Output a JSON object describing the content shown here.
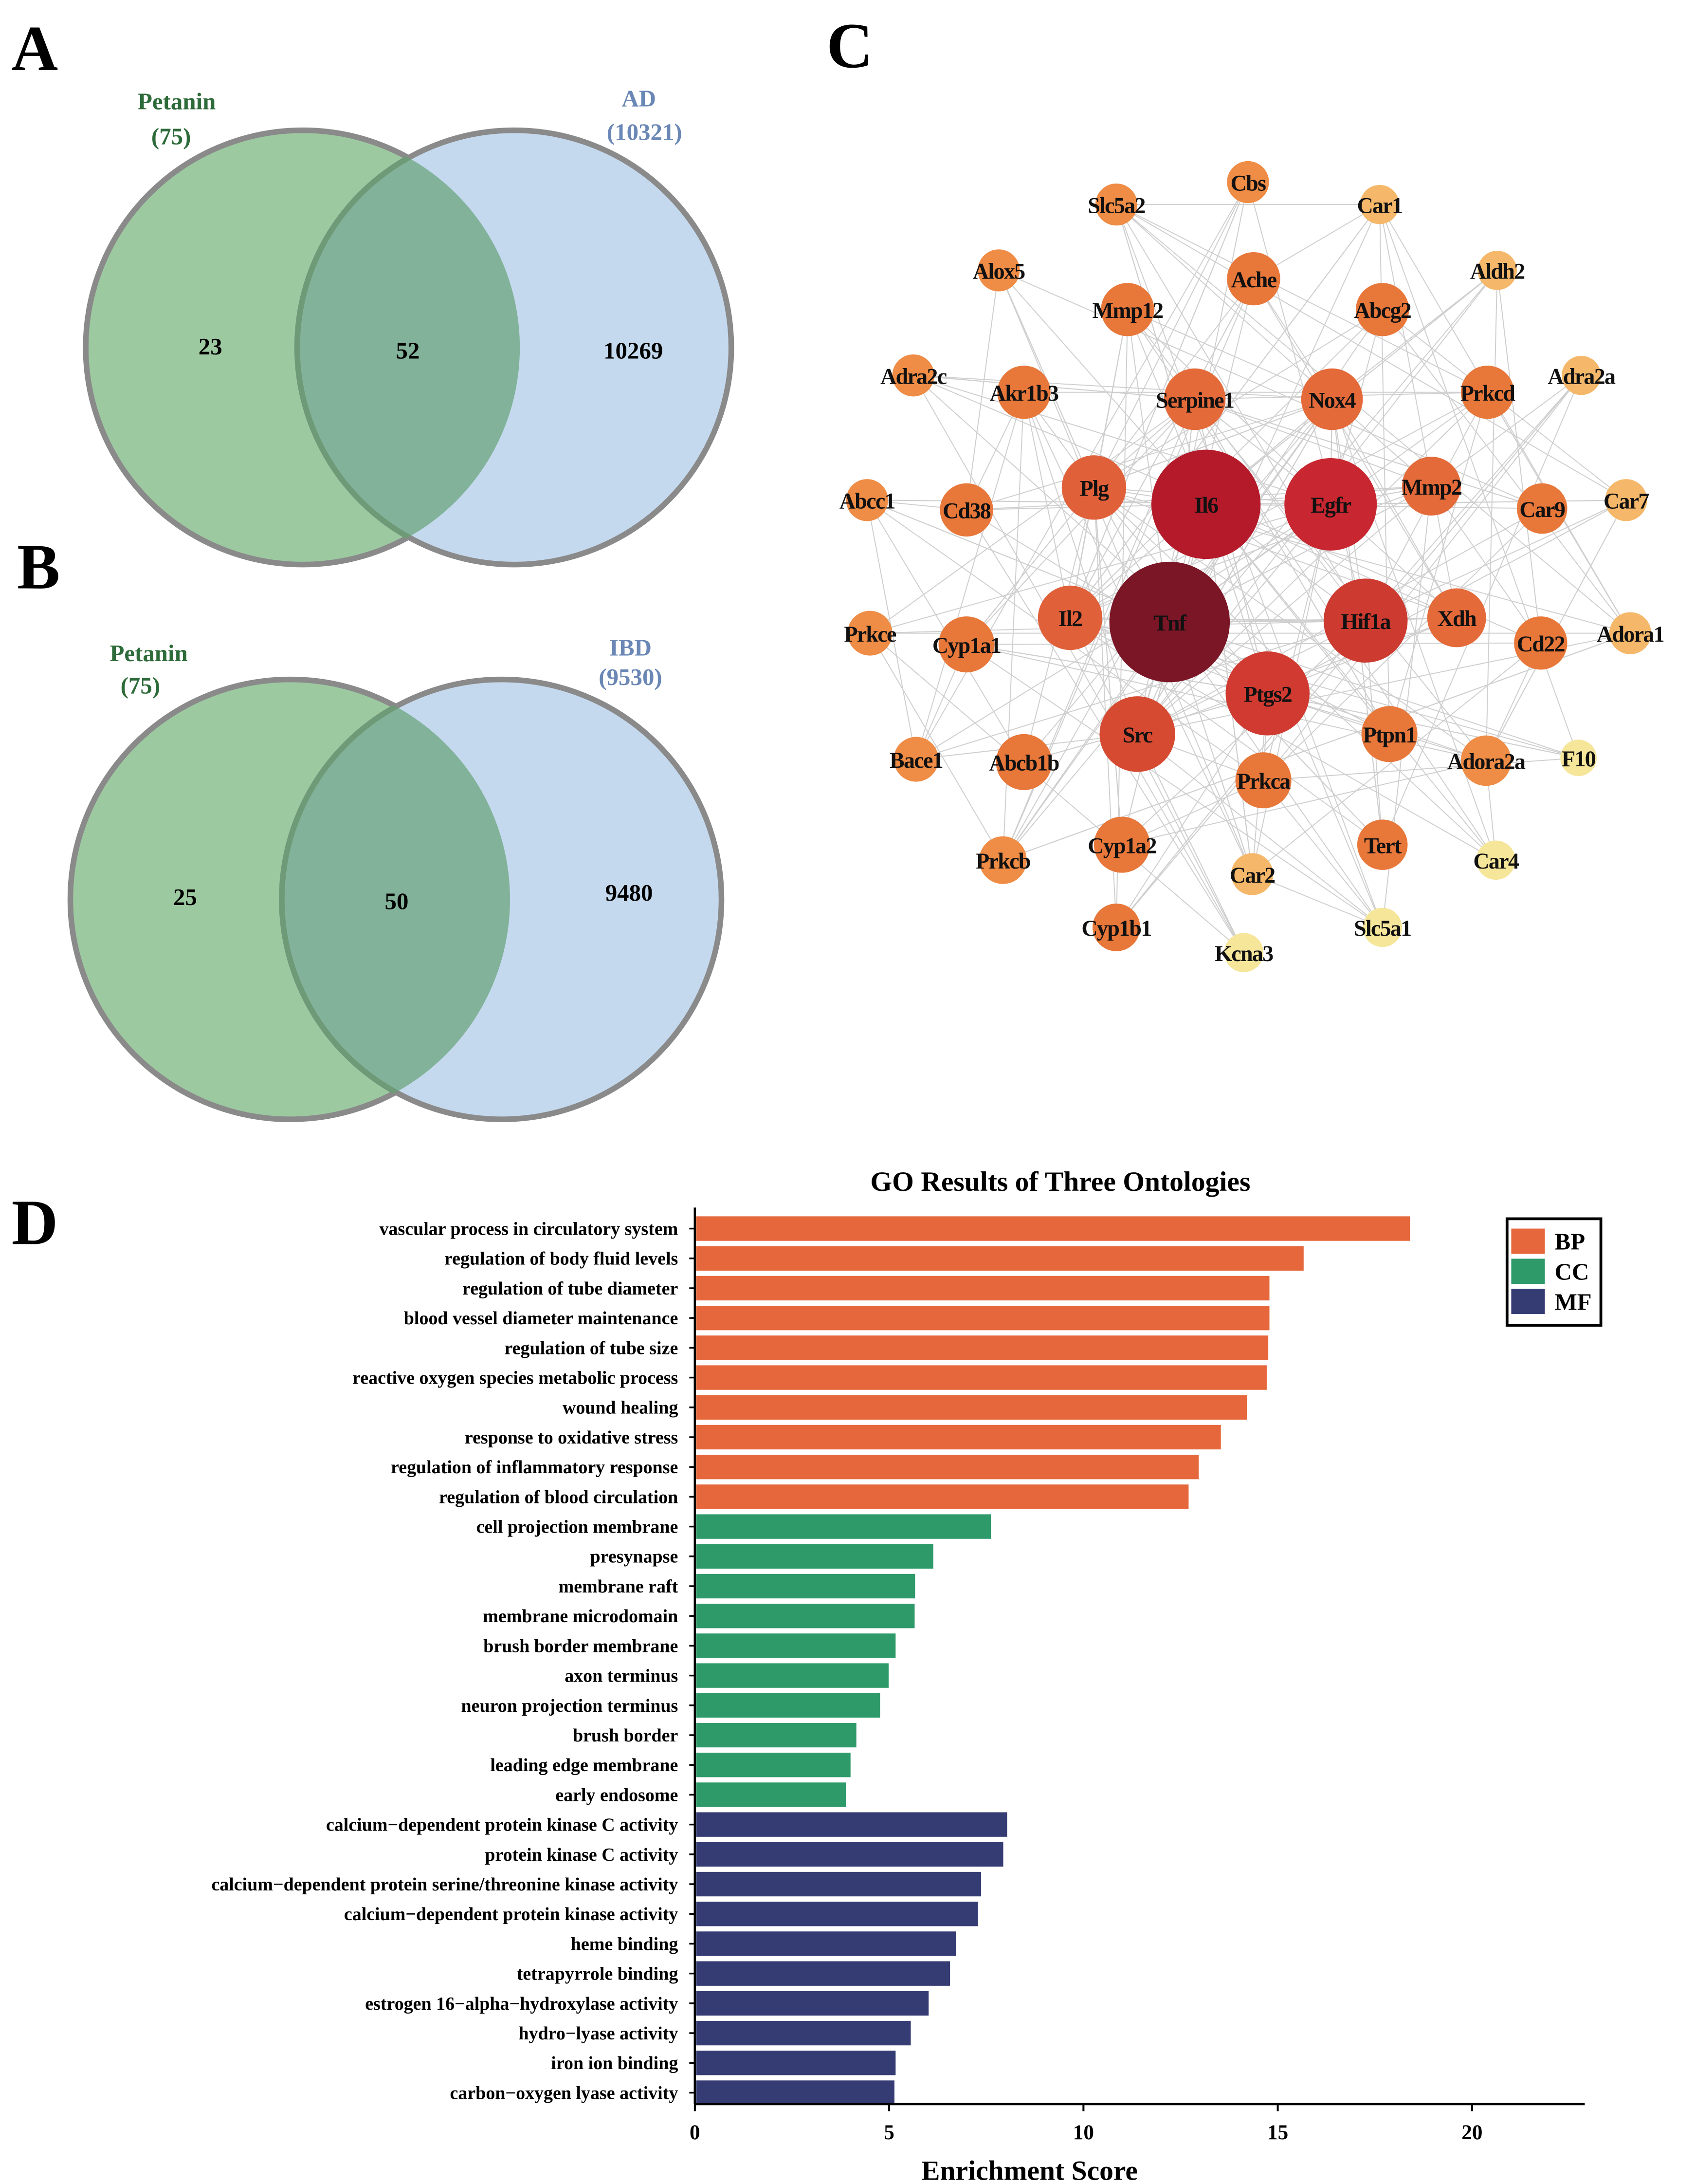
{
  "panels": {
    "a": "A",
    "b": "B",
    "c": "C",
    "d": "D"
  },
  "venn_a": {
    "left_name": "Petanin",
    "left_total": "(75)",
    "right_name": "AD",
    "right_total": "(10321)",
    "left_only": "23",
    "overlap": "52",
    "right_only": "10269"
  },
  "venn_b": {
    "left_name": "Petanin",
    "left_total": "(75)",
    "right_name": "IBD",
    "right_total": "(9530)",
    "left_only": "25",
    "overlap": "50",
    "right_only": "9480"
  },
  "colors": {
    "venn_left": "#9DC9A1",
    "venn_right": "#C5D9EE",
    "venn_stroke": "#8A8A8A",
    "left_label": "#2E6B3A",
    "right_label": "#6A87B5",
    "BP": "#E5673B",
    "CC": "#2E9A6A",
    "MF": "#353B73"
  },
  "network": {
    "nodes": [
      {
        "name": "Cbs",
        "color": "#EF8C45"
      },
      {
        "name": "Slc5a2",
        "color": "#EF8C45"
      },
      {
        "name": "Car1",
        "color": "#F5B86A"
      },
      {
        "name": "Alox5",
        "color": "#EF8C45"
      },
      {
        "name": "Ache",
        "color": "#E8773A"
      },
      {
        "name": "Mmp12",
        "color": "#E8773A"
      },
      {
        "name": "Abcg2",
        "color": "#E8773A"
      },
      {
        "name": "Aldh2",
        "color": "#F5B86A"
      },
      {
        "name": "Adra2c",
        "color": "#EF8C45"
      },
      {
        "name": "Akr1b3",
        "color": "#E8773A"
      },
      {
        "name": "Serpine1",
        "color": "#E46A3A"
      },
      {
        "name": "Nox4",
        "color": "#E46A3A"
      },
      {
        "name": "Prkcd",
        "color": "#E8773A"
      },
      {
        "name": "Adra2a",
        "color": "#F5B86A"
      },
      {
        "name": "Abcc1",
        "color": "#EF8C45"
      },
      {
        "name": "Cd38",
        "color": "#E8773A"
      },
      {
        "name": "Plg",
        "color": "#E0603A"
      },
      {
        "name": "Il6",
        "color": "#B51A2A"
      },
      {
        "name": "Egfr",
        "color": "#C82630"
      },
      {
        "name": "Mmp2",
        "color": "#E46A3A"
      },
      {
        "name": "Car9",
        "color": "#E8773A"
      },
      {
        "name": "Car7",
        "color": "#F5B86A"
      },
      {
        "name": "Prkce",
        "color": "#EF8C45"
      },
      {
        "name": "Cyp1a1",
        "color": "#E8773A"
      },
      {
        "name": "Il2",
        "color": "#E0603A"
      },
      {
        "name": "Tnf",
        "color": "#7A1626"
      },
      {
        "name": "Hif1a",
        "color": "#CC3A30"
      },
      {
        "name": "Xdh",
        "color": "#E46A3A"
      },
      {
        "name": "Cd22",
        "color": "#E8773A"
      },
      {
        "name": "Adora1",
        "color": "#F5B86A"
      },
      {
        "name": "Ptgs2",
        "color": "#D03A30"
      },
      {
        "name": "Src",
        "color": "#D64A32"
      },
      {
        "name": "Ptpn1",
        "color": "#E8773A"
      },
      {
        "name": "Bace1",
        "color": "#EF8C45"
      },
      {
        "name": "Abcb1b",
        "color": "#E8773A"
      },
      {
        "name": "Prkca",
        "color": "#E8773A"
      },
      {
        "name": "Adora2a",
        "color": "#EF8C45"
      },
      {
        "name": "F10",
        "color": "#F5E69A"
      },
      {
        "name": "Cyp1a2",
        "color": "#E8773A"
      },
      {
        "name": "Tert",
        "color": "#E8773A"
      },
      {
        "name": "Prkcb",
        "color": "#EF8C45"
      },
      {
        "name": "Car2",
        "color": "#F5B86A"
      },
      {
        "name": "Car4",
        "color": "#F5E69A"
      },
      {
        "name": "Cyp1b1",
        "color": "#E8773A"
      },
      {
        "name": "Slc5a1",
        "color": "#F5E69A"
      },
      {
        "name": "Kcna3",
        "color": "#F5E69A"
      }
    ]
  },
  "chart_data": {
    "type": "bar",
    "orientation": "horizontal",
    "title": "GO Results of Three Ontologies",
    "xlabel": "Enrichment Score",
    "ylabel": "",
    "xlim": [
      0,
      22.9
    ],
    "xticks": [
      0,
      5,
      10,
      15,
      20
    ],
    "grid": false,
    "legend": {
      "position": "top-right",
      "entries": [
        "BP",
        "CC",
        "MF"
      ]
    },
    "categories": [
      "vascular process in circulatory system",
      "regulation of body fluid levels",
      "regulation of tube diameter",
      "blood vessel diameter maintenance",
      "regulation of tube size",
      "reactive oxygen species metabolic process",
      "wound healing",
      "response to oxidative stress",
      "regulation of inflammatory response",
      "regulation of blood circulation",
      "cell projection membrane",
      "presynapse",
      "membrane raft",
      "membrane microdomain",
      "brush border membrane",
      "axon terminus",
      "neuron projection terminus",
      "brush border",
      "leading edge membrane",
      "early endosome",
      "calcium−dependent protein kinase C activity",
      "protein kinase C activity",
      "calcium−dependent protein serine/threonine kinase activity",
      "calcium−dependent protein kinase activity",
      "heme binding",
      "tetrapyrrole binding",
      "estrogen 16−alpha−hydroxylase activity",
      "hydro−lyase activity",
      "iron ion binding",
      "carbon−oxygen lyase activity"
    ],
    "values": [
      18.37,
      15.63,
      14.75,
      14.75,
      14.72,
      14.68,
      14.17,
      13.5,
      12.93,
      12.67,
      7.58,
      6.1,
      5.63,
      5.62,
      5.13,
      4.95,
      4.73,
      4.12,
      3.97,
      3.85,
      8.0,
      7.9,
      7.33,
      7.25,
      6.68,
      6.53,
      5.98,
      5.52,
      5.13,
      5.1
    ],
    "groups": [
      "BP",
      "BP",
      "BP",
      "BP",
      "BP",
      "BP",
      "BP",
      "BP",
      "BP",
      "BP",
      "CC",
      "CC",
      "CC",
      "CC",
      "CC",
      "CC",
      "CC",
      "CC",
      "CC",
      "CC",
      "MF",
      "MF",
      "MF",
      "MF",
      "MF",
      "MF",
      "MF",
      "MF",
      "MF",
      "MF"
    ]
  }
}
